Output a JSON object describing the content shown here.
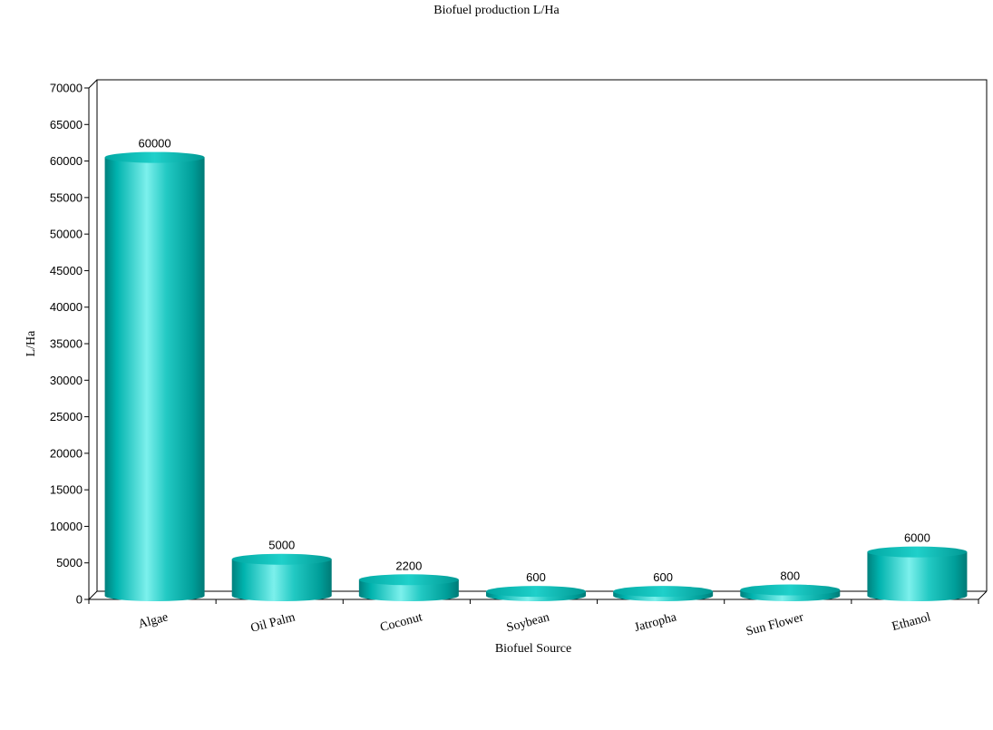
{
  "chart_data": {
    "type": "bar",
    "title": "Biofuel production L/Ha",
    "xlabel": "Biofuel Source",
    "ylabel": "L/Ha",
    "categories": [
      "Algae",
      "Oil Palm",
      "Coconut",
      "Soybean",
      "Jatropha",
      "Sun Flower",
      "Ethanol"
    ],
    "values": [
      60000,
      5000,
      2200,
      600,
      600,
      800,
      6000
    ],
    "ylim": [
      0,
      70000
    ],
    "yticks": [
      0,
      5000,
      10000,
      15000,
      20000,
      25000,
      30000,
      35000,
      40000,
      45000,
      50000,
      55000,
      60000,
      65000,
      70000
    ],
    "data_labels": true,
    "grid": false,
    "legend": "none",
    "bar_style": "3d-cylinder",
    "bar_color": "#00b5b0"
  }
}
